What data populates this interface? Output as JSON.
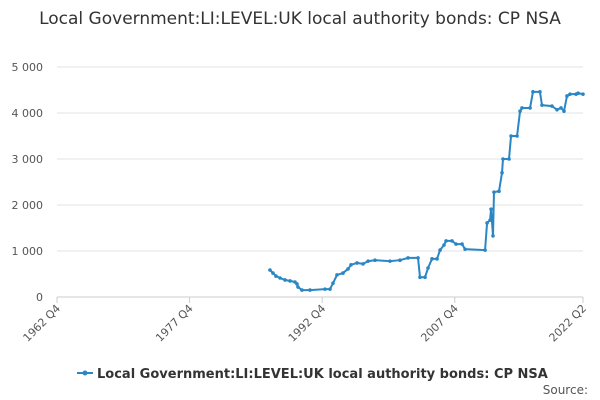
{
  "chart_data": {
    "type": "line",
    "title": "Local Government:LI:LEVEL:UK local authority bonds: CP NSA",
    "source": "Source:",
    "xlim": [
      1962.75,
      2022.25
    ],
    "xticks": [
      {
        "value": 1962.75,
        "label": "1962 Q4"
      },
      {
        "value": 1977.75,
        "label": "1977 Q4"
      },
      {
        "value": 1992.75,
        "label": "1992 Q4"
      },
      {
        "value": 2007.75,
        "label": "2007 Q4"
      },
      {
        "value": 2022.25,
        "label": "2022 Q2"
      }
    ],
    "ylim": [
      0,
      5000
    ],
    "yticks": [
      0,
      {
        "value": 1000,
        "label": "1 000"
      },
      {
        "value": 2000,
        "label": "2 000"
      },
      {
        "value": 3000,
        "label": "3 000"
      },
      {
        "value": 4000,
        "label": "4 000"
      },
      {
        "value": 5000,
        "label": "5 000"
      }
    ],
    "grid": true,
    "x": [
      1986.84,
      1987.18,
      1987.52,
      1987.98,
      1988.54,
      1989.11,
      1989.67,
      1989.9,
      1990.01,
      1990.46,
      1991.37,
      1993.07,
      1993.63,
      1993.97,
      1994.42,
      1995.1,
      1995.67,
      1996.01,
      1996.69,
      1997.37,
      1997.94,
      1998.72,
      2000.42,
      2001.55,
      2002.46,
      2003.59,
      2003.81,
      2004.38,
      2004.72,
      2005.17,
      2005.74,
      2006.08,
      2006.53,
      2006.76,
      2007.43,
      2007.89,
      2008.57,
      2008.91,
      2011.17,
      2011.4,
      2011.74,
      2011.85,
      2012.07,
      2012.18,
      2012.75,
      2013.09,
      2013.2,
      2013.88,
      2014.11,
      2014.79,
      2015.13,
      2015.35,
      2016.26,
      2016.59,
      2017.38,
      2017.61,
      2018.74,
      2019.31,
      2019.76,
      2020.1,
      2020.44,
      2020.78,
      2021.46,
      2021.69,
      2022.25
    ],
    "series": [
      {
        "name": "Local Government:LI:LEVEL:UK local authority bonds: CP NSA",
        "color": "#2a86c4",
        "values": [
          587,
          520,
          455,
          413,
          370,
          350,
          326,
          283,
          217,
          150,
          150,
          170,
          170,
          300,
          480,
          520,
          610,
          700,
          740,
          720,
          780,
          800,
          780,
          800,
          850,
          850,
          430,
          430,
          630,
          830,
          830,
          1020,
          1130,
          1220,
          1220,
          1150,
          1150,
          1040,
          1020,
          1610,
          1670,
          1910,
          1330,
          2280,
          2300,
          2700,
          3000,
          3000,
          3500,
          3500,
          4040,
          4110,
          4110,
          4460,
          4460,
          4170,
          4150,
          4070,
          4110,
          4040,
          4370,
          4410,
          4410,
          4430,
          4410
        ]
      }
    ],
    "legend": "bottom"
  }
}
